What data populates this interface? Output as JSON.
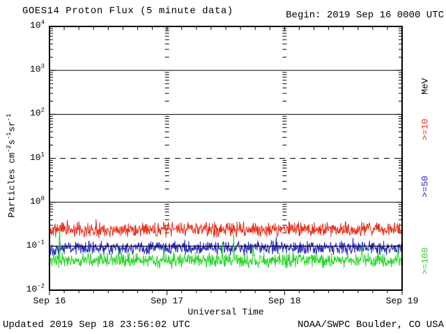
{
  "header": {
    "title": "GOES14 Proton Flux (5 minute data)",
    "begin": "Begin: 2019 Sep 16 0000 UTC"
  },
  "footer": {
    "updated": "Updated 2019 Sep 18 23:56:02 UTC",
    "source": "NOAA/SWPC Boulder, CO USA"
  },
  "chart_data": {
    "type": "line",
    "title": "GOES14 Proton Flux (5 minute data)",
    "xlabel": "Universal Time",
    "ylabel_parts": [
      {
        "t": "Particles cm"
      },
      {
        "s": "-2"
      },
      {
        "t": "s"
      },
      {
        "s": "-1"
      },
      {
        "t": "sr"
      },
      {
        "s": "-1"
      }
    ],
    "yscale": "log",
    "ylim": [
      0.01,
      10000
    ],
    "y_tick_exponents": [
      4,
      3,
      2,
      1,
      0,
      -1,
      -2
    ],
    "solid_gridline_exponents": [
      3,
      2,
      0,
      -1
    ],
    "dashed_gridline_exponents": [
      1
    ],
    "x_tick_labels": [
      "Sep 16",
      "Sep 17",
      "Sep 18",
      "Sep 19"
    ],
    "x_days": 3,
    "minutes_per_point": 5,
    "points_per_series": 864,
    "axis_color": "#000000",
    "legend": {
      "position": "right-rotated",
      "unit_title": "MeV",
      "entries": [
        ">=10",
        ">=50",
        ">=100"
      ]
    },
    "series": [
      {
        "label": ">=10",
        "unit": "MeV",
        "color": "#e8301c",
        "typical_flux": 0.24,
        "flux_range": [
          0.13,
          0.62
        ],
        "log10_mean": -0.62,
        "log10_sigma": 0.1,
        "spike_prob": 0.012,
        "spike_log10_max": 0.22,
        "seed": 11
      },
      {
        "label": ">=50",
        "unit": "MeV",
        "color": "#2727c4",
        "typical_flux": 0.09,
        "flux_range": [
          0.05,
          0.2
        ],
        "log10_mean": -1.04,
        "log10_sigma": 0.09,
        "spike_prob": 0.016,
        "spike_log10_max": 0.3,
        "seed": 22
      },
      {
        "label": ">=100",
        "unit": "MeV",
        "color": "#2ad42a",
        "typical_flux": 0.047,
        "flux_range": [
          0.026,
          0.3
        ],
        "log10_mean": -1.32,
        "log10_sigma": 0.1,
        "spike_prob": 0.02,
        "spike_log10_max": 0.75,
        "seed": 33
      }
    ]
  }
}
